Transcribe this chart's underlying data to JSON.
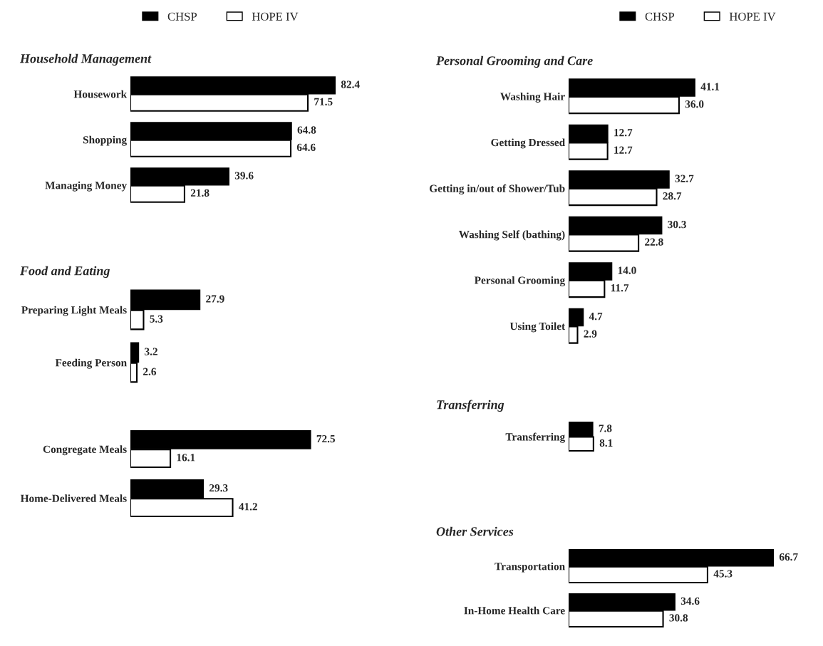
{
  "chart_data": [
    {
      "type": "bar",
      "orientation": "horizontal",
      "title": "Household Management",
      "categories": [
        "Housework",
        "Shopping",
        "Managing Money"
      ],
      "data_labels": true,
      "legend": "top",
      "series": [
        {
          "name": "CHSP",
          "color": "#000000",
          "values": [
            82.4,
            64.8,
            39.6
          ]
        },
        {
          "name": "HOPE IV",
          "color": "#ffffff",
          "values": [
            71.5,
            64.6,
            21.8
          ]
        }
      ]
    },
    {
      "type": "bar",
      "orientation": "horizontal",
      "title": "Food and Eating",
      "categories": [
        "Preparing Light Meals",
        "Feeding Person"
      ],
      "data_labels": true,
      "series": [
        {
          "color": "#000000",
          "values": [
            27.9,
            3.2
          ]
        },
        {
          "color": "#ffffff",
          "values": [
            5.3,
            2.6
          ]
        }
      ]
    },
    {
      "type": "bar",
      "orientation": "horizontal",
      "categories": [
        "Congregate Meals",
        "Home-Delivered Meals"
      ],
      "data_labels": true,
      "series": [
        {
          "color": "#000000",
          "values": [
            72.5,
            29.3
          ]
        },
        {
          "color": "#ffffff",
          "values": [
            16.1,
            41.2
          ]
        }
      ]
    },
    {
      "type": "bar",
      "orientation": "horizontal",
      "title": "Personal Grooming and Care",
      "categories": [
        "Washing Hair",
        "Getting Dressed",
        "Getting in/out of Shower/Tub",
        "Washing Self (bathing)",
        "Personal Grooming",
        "Using Toilet"
      ],
      "data_labels": true,
      "legend": "top",
      "series": [
        {
          "name": "CHSP",
          "color": "#000000",
          "values": [
            41.1,
            12.7,
            32.7,
            30.3,
            14.0,
            4.7
          ],
          "value_labels": [
            "41.1",
            "12.7",
            "32.7",
            "30.3",
            "14.0",
            "4.7"
          ]
        },
        {
          "name": "HOPE IV",
          "color": "#ffffff",
          "values": [
            36.0,
            12.7,
            28.7,
            22.8,
            11.7,
            2.9
          ],
          "value_labels": [
            "36.0",
            "12.7",
            "28.7",
            "22.8",
            "11.7",
            "2.9"
          ]
        }
      ]
    },
    {
      "type": "bar",
      "orientation": "horizontal",
      "title": "Transferring",
      "categories": [
        "Transferring"
      ],
      "data_labels": true,
      "series": [
        {
          "color": "#000000",
          "values": [
            7.8
          ]
        },
        {
          "color": "#ffffff",
          "values": [
            8.1
          ]
        }
      ]
    },
    {
      "type": "bar",
      "orientation": "horizontal",
      "title": "Other Services",
      "categories": [
        "Transportation",
        "In-Home Health Care"
      ],
      "data_labels": true,
      "series": [
        {
          "color": "#000000",
          "values": [
            66.7,
            34.6
          ]
        },
        {
          "color": "#ffffff",
          "values": [
            45.3,
            30.8
          ]
        }
      ]
    }
  ]
}
